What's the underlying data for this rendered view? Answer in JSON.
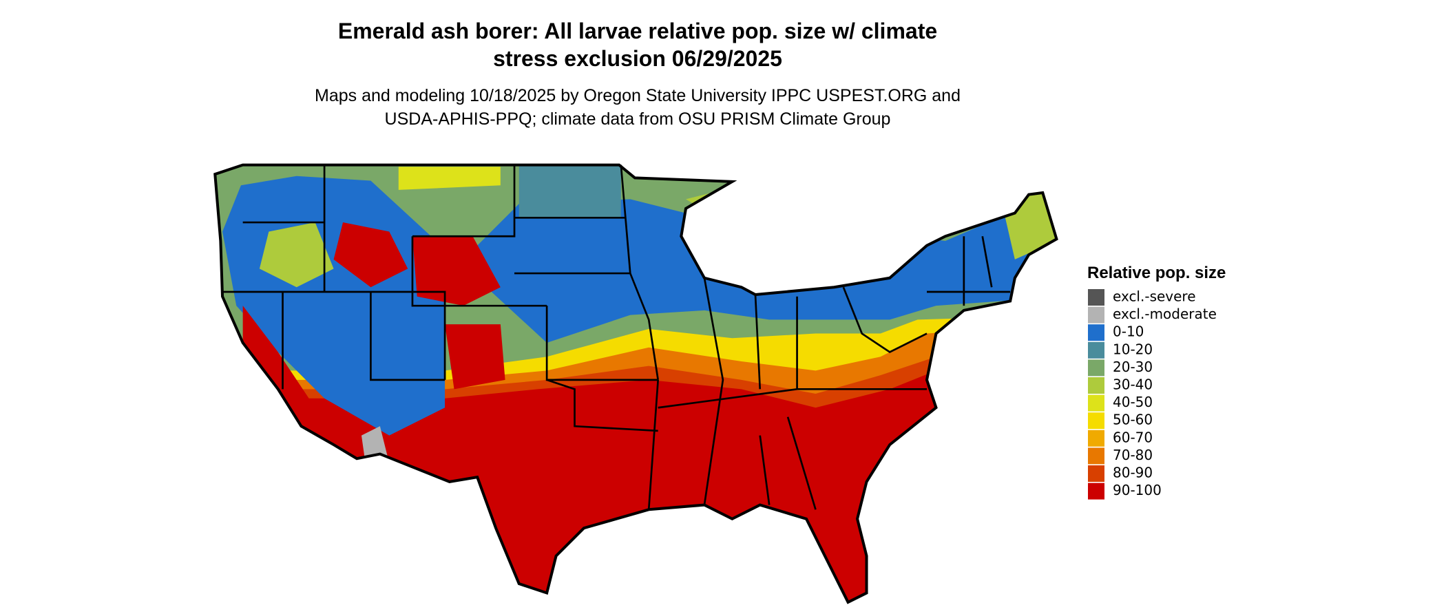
{
  "header": {
    "title": [
      "Emerald ash borer: All larvae relative pop. size w/ climate",
      "stress exclusion 06/29/2025"
    ],
    "subtitle": [
      "Maps and modeling 10/18/2025 by Oregon State University IPPC USPEST.ORG and",
      "USDA-APHIS-PPQ; climate data from OSU PRISM Climate Group"
    ]
  },
  "legend": {
    "title": "Relative pop. size",
    "items": [
      {
        "label": "excl.-severe",
        "color": "#555555"
      },
      {
        "label": "excl.-moderate",
        "color": "#b3b3b3"
      },
      {
        "label": "0-10",
        "color": "#1f6fcc"
      },
      {
        "label": "10-20",
        "color": "#4a8c9c"
      },
      {
        "label": "20-30",
        "color": "#7aa868"
      },
      {
        "label": "30-40",
        "color": "#aecb3c"
      },
      {
        "label": "40-50",
        "color": "#dde21a"
      },
      {
        "label": "50-60",
        "color": "#f5dc00"
      },
      {
        "label": "60-70",
        "color": "#f0aa00"
      },
      {
        "label": "70-80",
        "color": "#e87800"
      },
      {
        "label": "80-90",
        "color": "#d84000"
      },
      {
        "label": "90-100",
        "color": "#cc0000"
      }
    ]
  }
}
